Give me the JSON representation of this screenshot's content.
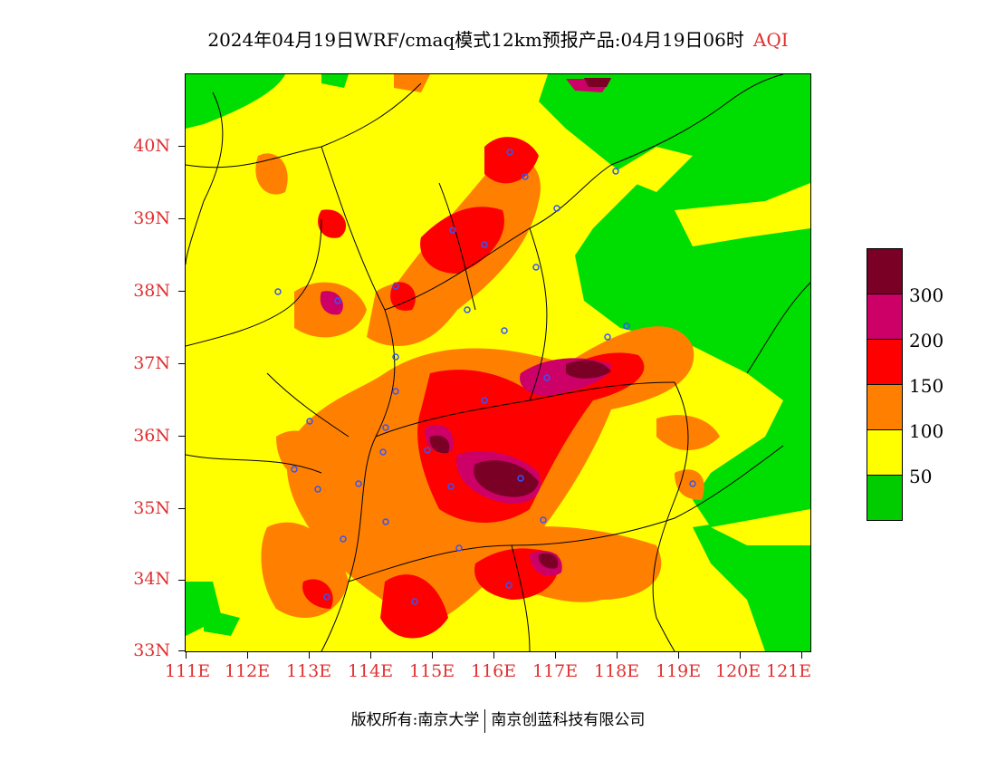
{
  "title": {
    "main": "2024年04月19日WRF/cmaq模式12km预报产品:04月19日06时",
    "variable": "AQI"
  },
  "axes": {
    "y_labels": [
      "40N",
      "39N",
      "38N",
      "37N",
      "36N",
      "35N",
      "34N",
      "33N"
    ],
    "x_labels": [
      "111E",
      "112E",
      "113E",
      "114E",
      "115E",
      "116E",
      "117E",
      "118E",
      "119E",
      "120E",
      "121E"
    ]
  },
  "legend": {
    "labels": [
      "300",
      "200",
      "150",
      "100",
      "50"
    ],
    "colors": [
      "#7a0026",
      "#cc0066",
      "#ff0000",
      "#ff8000",
      "#ffff00",
      "#00cc00"
    ]
  },
  "footer": {
    "left": "版权所有:南京大学",
    "right": "南京创蓝科技有限公司"
  },
  "colors": {
    "good": "#00dd00",
    "moderate": "#ffff00",
    "unhealthy_sensitive": "#ff8000",
    "unhealthy": "#ff0000",
    "very_unhealthy": "#cc0066",
    "hazardous": "#7a0026",
    "station_marker": "#3355ff",
    "axis_label": "#e03030"
  }
}
